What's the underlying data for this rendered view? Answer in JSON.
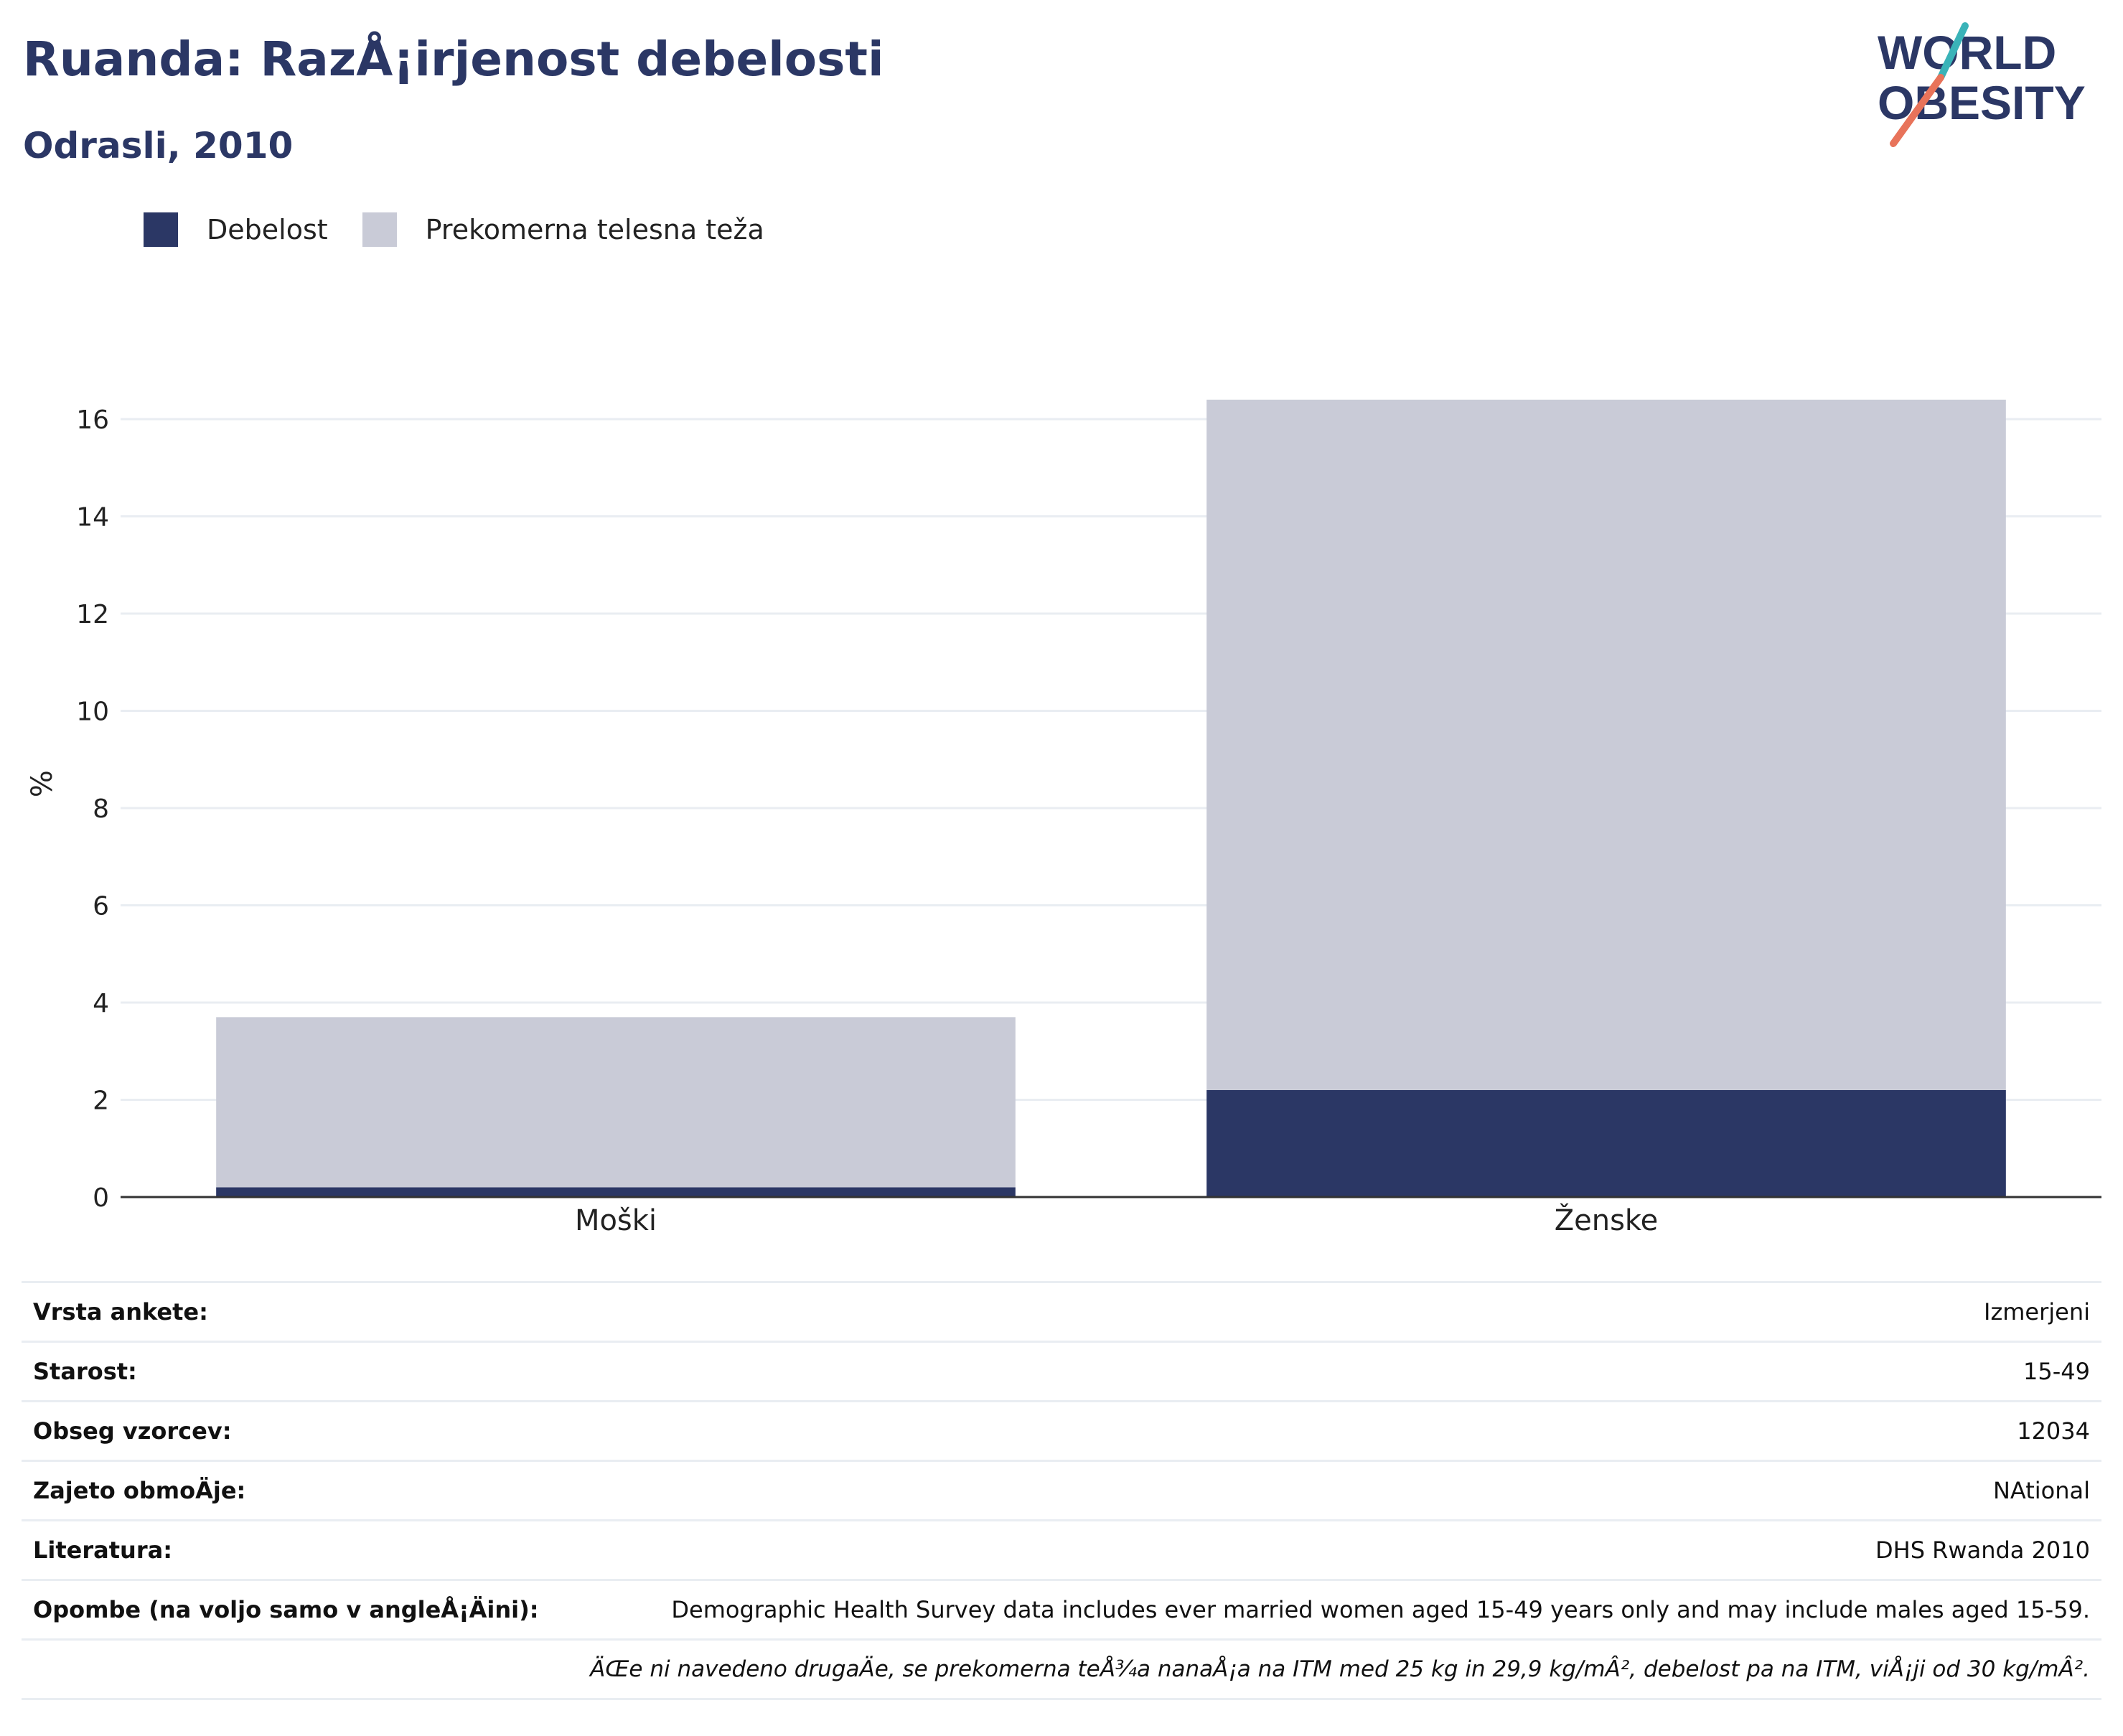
{
  "header": {
    "title": "Ruanda: RazÅ¡irjenost debelosti",
    "subtitle": "Odrasli, 2010"
  },
  "logo": {
    "line1": "WORLD",
    "line2": "OBESITY",
    "colors": {
      "text": "#2b3765",
      "teal": "#3ab3b8",
      "coral": "#e8735a"
    }
  },
  "colors": {
    "obesity": "#2b3765",
    "overweight": "#c9cbd7",
    "axis": "#333333",
    "grid": "#e9edf2"
  },
  "chart_data": {
    "type": "bar",
    "stacked": true,
    "title": "Ruanda: RazÅ¡irjenost debelosti",
    "subtitle": "Odrasli, 2010",
    "categories": [
      "Moški",
      "Ženske"
    ],
    "series": [
      {
        "name": "Debelost",
        "values": [
          0.2,
          2.2
        ],
        "color": "#2b3765"
      },
      {
        "name": "Prekomerna telesna teža",
        "values": [
          3.5,
          14.2
        ],
        "color": "#c9cbd7"
      }
    ],
    "ylabel": "%",
    "xlabel": "",
    "ylim": [
      0,
      17
    ],
    "yticks": [
      0,
      2,
      4,
      6,
      8,
      10,
      12,
      14,
      16
    ],
    "grid": true,
    "legend": "top-left"
  },
  "info": {
    "rows": [
      {
        "label": "Vrsta ankete:",
        "value": "Izmerjeni"
      },
      {
        "label": "Starost:",
        "value": "15-49"
      },
      {
        "label": "Obseg vzorcev:",
        "value": "12034"
      },
      {
        "label": "Zajeto obmoÄje:",
        "value": "NAtional"
      },
      {
        "label": "Literatura:",
        "value": "DHS Rwanda 2010"
      },
      {
        "label": "Opombe (na voljo samo v angleÅ¡Äini):",
        "value": "Demographic Health Survey data includes ever married women aged 15-49 years only and may include males aged 15-59."
      }
    ],
    "footnote": "ÄŒe ni navedeno drugaÄe, se prekomerna teÅ¾a nanaÅ¡a na ITM med 25 kg in 29,9 kg/mÂ², debelost pa na ITM, viÅ¡ji od 30 kg/mÂ²."
  }
}
